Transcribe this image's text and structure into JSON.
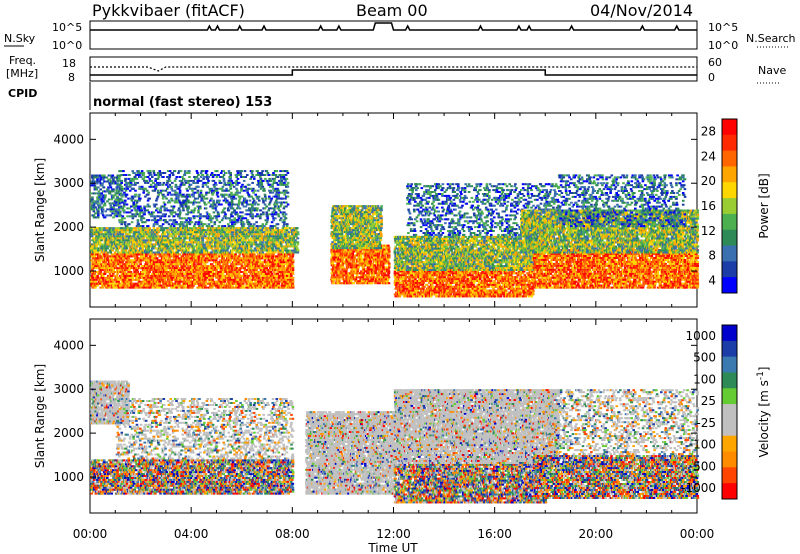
{
  "header": {
    "station": "Pykkvibaer (fitACF)",
    "beam": "Beam 00",
    "date": "04/Nov/2014"
  },
  "panel_labels": {
    "nsky": "N.Sky",
    "nsearch": "N.Search",
    "freq_line1": "Freq.",
    "freq_line2": "[MHz]",
    "nave": "Nave",
    "cpid": "CPID",
    "cpid_value": "normal (fast stereo) 153",
    "nsky_ticks": [
      "10^5",
      "10^0"
    ],
    "nsky_right_ticks": [
      "10^5",
      "10^0"
    ],
    "freq_ticks": [
      "18",
      "8"
    ],
    "nave_ticks": [
      "60",
      "0"
    ]
  },
  "chart_data": [
    {
      "type": "heatmap",
      "title": "",
      "xlabel": "Time UT",
      "ylabel": "Slant Range [km]",
      "xticks": [
        "00:00",
        "04:00",
        "08:00",
        "12:00",
        "16:00",
        "20:00",
        "00:00"
      ],
      "xlim_hours": [
        0,
        24
      ],
      "yticks": [
        "1000",
        "2000",
        "3000",
        "4000"
      ],
      "ylim": [
        180,
        4600
      ],
      "colorbar": {
        "label": "Power [dB]",
        "ticks": [
          "28",
          "24",
          "20",
          "16",
          "12",
          "8",
          "4"
        ],
        "range": [
          0,
          30
        ],
        "colors": [
          "#0000ff",
          "#1c3da8",
          "#3a6fb0",
          "#2e8b57",
          "#4caf50",
          "#9acd32",
          "#ffd700",
          "#ffa500",
          "#ff6600",
          "#ff2a00",
          "#ff0000"
        ]
      },
      "regions": [
        {
          "t0": 0.0,
          "t1": 8.0,
          "r0": 600,
          "r1": 1400,
          "level": "high"
        },
        {
          "t0": 0.0,
          "t1": 8.2,
          "r0": 1400,
          "r1": 2000,
          "level": "mid"
        },
        {
          "t0": 0.0,
          "t1": 1.2,
          "r0": 2200,
          "r1": 3200,
          "level": "low"
        },
        {
          "t0": 1.0,
          "t1": 7.8,
          "r0": 2000,
          "r1": 3300,
          "level": "sparse"
        },
        {
          "t0": 9.5,
          "t1": 11.8,
          "r0": 700,
          "r1": 1600,
          "level": "high"
        },
        {
          "t0": 9.5,
          "t1": 11.5,
          "r0": 1500,
          "r1": 2500,
          "level": "mid"
        },
        {
          "t0": 12.0,
          "t1": 17.5,
          "r0": 400,
          "r1": 1100,
          "level": "high"
        },
        {
          "t0": 12.0,
          "t1": 18.0,
          "r0": 1000,
          "r1": 1800,
          "level": "mid"
        },
        {
          "t0": 12.5,
          "t1": 18.5,
          "r0": 1800,
          "r1": 3000,
          "level": "sparse"
        },
        {
          "t0": 17.5,
          "t1": 24.0,
          "r0": 600,
          "r1": 1500,
          "level": "high"
        },
        {
          "t0": 17.0,
          "t1": 24.0,
          "r0": 1400,
          "r1": 2400,
          "level": "mid"
        },
        {
          "t0": 18.5,
          "t1": 23.5,
          "r0": 2000,
          "r1": 3200,
          "level": "sparse"
        }
      ]
    },
    {
      "type": "heatmap",
      "title": "",
      "xlabel": "Time UT",
      "ylabel": "Slant Range [km]",
      "xticks": [
        "00:00",
        "04:00",
        "08:00",
        "12:00",
        "16:00",
        "20:00",
        "00:00"
      ],
      "xlim_hours": [
        0,
        24
      ],
      "yticks": [
        "1000",
        "2000",
        "3000",
        "4000"
      ],
      "ylim": [
        180,
        4600
      ],
      "colorbar": {
        "label": "Velocity [m s^-1]",
        "label_main": "Velocity [m s",
        "label_sup": "-1",
        "label_end": "]",
        "ticks": [
          "1000",
          "500",
          "100",
          "25",
          "-25",
          "-100",
          "-500",
          "-1000"
        ],
        "range": [
          -1200,
          1200
        ],
        "colors": [
          "#ff0000",
          "#ff4500",
          "#ff8c00",
          "#ffa500",
          "#c0c0c0",
          "#c0c0c0",
          "#66cc33",
          "#2e8b57",
          "#3a7ab0",
          "#1c3da8",
          "#0000cc"
        ]
      },
      "regions": [
        {
          "t0": 0.0,
          "t1": 8.0,
          "r0": 600,
          "r1": 1400,
          "level": "mixed"
        },
        {
          "t0": 0.0,
          "t1": 1.5,
          "r0": 2200,
          "r1": 3200,
          "level": "gray"
        },
        {
          "t0": 1.0,
          "t1": 8.0,
          "r0": 1400,
          "r1": 2800,
          "level": "sparse"
        },
        {
          "t0": 8.5,
          "t1": 12.0,
          "r0": 600,
          "r1": 2500,
          "level": "gray"
        },
        {
          "t0": 12.0,
          "t1": 18.0,
          "r0": 400,
          "r1": 1300,
          "level": "mixed"
        },
        {
          "t0": 12.0,
          "t1": 18.5,
          "r0": 1300,
          "r1": 3000,
          "level": "gray"
        },
        {
          "t0": 17.5,
          "t1": 24.0,
          "r0": 500,
          "r1": 1500,
          "level": "mixed"
        },
        {
          "t0": 18.0,
          "t1": 24.0,
          "r0": 1500,
          "r1": 3000,
          "level": "sparse"
        }
      ]
    }
  ]
}
